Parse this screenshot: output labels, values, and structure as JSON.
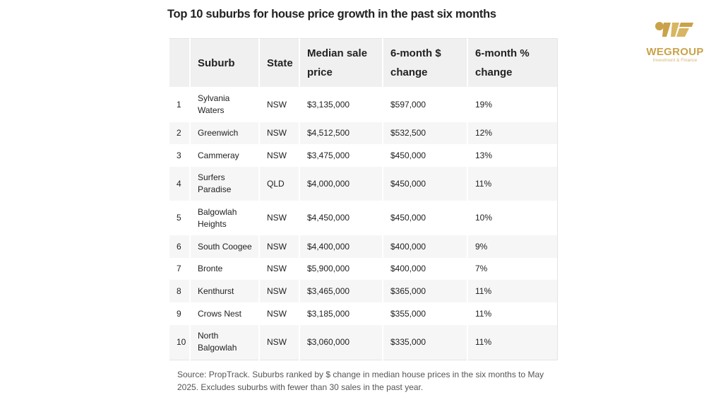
{
  "header": {
    "title": "Top 10 suburbs for house price growth in the past six months"
  },
  "logo": {
    "name": "WEGROUP",
    "tagline": "Investment & Finance"
  },
  "table": {
    "columns": [
      "Suburb",
      "State",
      "Median sale price",
      "6-month $ change",
      "6-month % change"
    ],
    "rows": [
      [
        "1",
        "Sylvania Waters",
        "NSW",
        "$3,135,000",
        "$597,000",
        "19%"
      ],
      [
        "2",
        "Greenwich",
        "NSW",
        "$4,512,500",
        "$532,500",
        "12%"
      ],
      [
        "3",
        "Cammeray",
        "NSW",
        "$3,475,000",
        "$450,000",
        "13%"
      ],
      [
        "4",
        "Surfers Paradise",
        "QLD",
        "$4,000,000",
        "$450,000",
        "11%"
      ],
      [
        "5",
        "Balgowlah Heights",
        "NSW",
        "$4,450,000",
        "$450,000",
        "10%"
      ],
      [
        "6",
        "South Coogee",
        "NSW",
        "$4,400,000",
        "$400,000",
        "9%"
      ],
      [
        "7",
        "Bronte",
        "NSW",
        "$5,900,000",
        "$400,000",
        "7%"
      ],
      [
        "8",
        "Kenthurst",
        "NSW",
        "$3,465,000",
        "$365,000",
        "11%"
      ],
      [
        "9",
        "Crows Nest",
        "NSW",
        "$3,185,000",
        "$355,000",
        "11%"
      ],
      [
        "10",
        "North Balgowlah",
        "NSW",
        "$3,060,000",
        "$335,000",
        "11%"
      ]
    ]
  },
  "source": "Source: PropTrack. Suburbs ranked by $ change in median house prices in the six months to May 2025. Excludes suburbs with fewer than 30 sales in the past year."
}
